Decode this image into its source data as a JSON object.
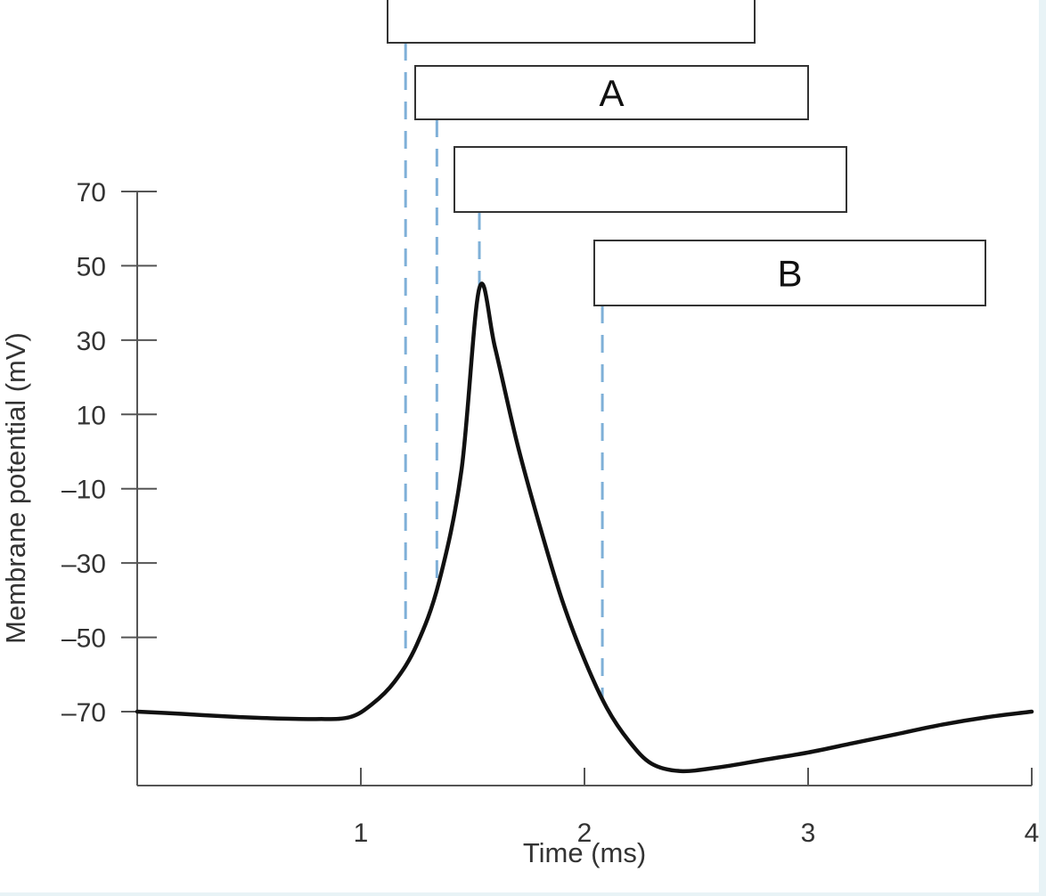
{
  "chart_data": {
    "type": "line",
    "title": "",
    "xlabel": "Time (ms)",
    "ylabel": "Membrane potential (mV)",
    "xlim": [
      0,
      4
    ],
    "ylim": [
      -90,
      70
    ],
    "x_ticks": [
      1,
      2,
      3,
      4
    ],
    "y_ticks": [
      70,
      50,
      30,
      10,
      -10,
      -30,
      -50,
      -70
    ],
    "y_tick_labels": [
      "70",
      "50",
      "30",
      "10",
      "–10",
      "–30",
      "–50",
      "–70"
    ],
    "grid": false,
    "legend": "none",
    "colors": {
      "trace": "#111111",
      "guides": "#7fb0d8"
    },
    "series": [
      {
        "x": [
          0,
          0.2,
          0.4,
          0.6,
          0.8,
          0.95,
          1.05,
          1.15,
          1.25,
          1.35,
          1.45,
          1.53,
          1.6,
          1.7,
          1.8,
          1.9,
          2.0,
          2.1,
          2.2,
          2.3,
          2.43,
          2.6,
          2.8,
          3.0,
          3.2,
          3.4,
          3.6,
          3.8,
          4.0
        ],
        "y": [
          -70,
          -70.6,
          -71.3,
          -71.8,
          -72,
          -71.5,
          -68,
          -62,
          -52,
          -35,
          -5,
          44,
          28,
          2,
          -20,
          -40,
          -56,
          -69,
          -78,
          -84,
          -86,
          -85,
          -83,
          -81,
          -78.5,
          -76,
          -73.5,
          -71.5,
          -70
        ]
      }
    ],
    "guide_lines": [
      {
        "x": 1.2,
        "y_from": -55
      },
      {
        "x": 1.34,
        "y_from": -35
      },
      {
        "x": 1.53,
        "y_from": 44
      },
      {
        "x": 2.08,
        "y_from": -67
      }
    ],
    "label_boxes": [
      {
        "label": ""
      },
      {
        "label": "A"
      },
      {
        "label": ""
      },
      {
        "label": "B"
      }
    ]
  }
}
